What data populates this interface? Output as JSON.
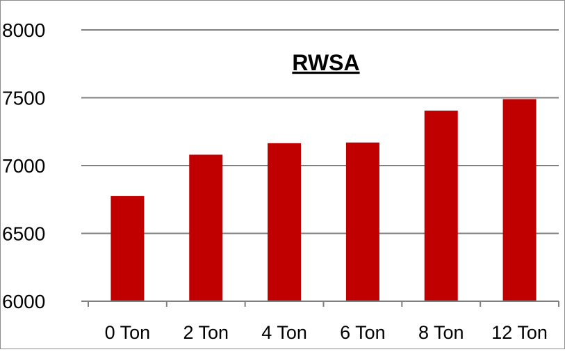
{
  "chart_data": {
    "type": "bar",
    "title": "RWSA",
    "xlabel": "",
    "ylabel": "",
    "categories": [
      "0 Ton",
      "2 Ton",
      "4 Ton",
      "6 Ton",
      "8 Ton",
      "12 Ton"
    ],
    "values": [
      6775,
      7080,
      7165,
      7170,
      7405,
      7490
    ],
    "ylim": [
      6000,
      8000
    ],
    "yticks": [
      6000,
      6500,
      7000,
      7500,
      8000
    ],
    "grid": true,
    "legend": "none",
    "bar_color": "#c00000",
    "grid_color": "#808080"
  }
}
